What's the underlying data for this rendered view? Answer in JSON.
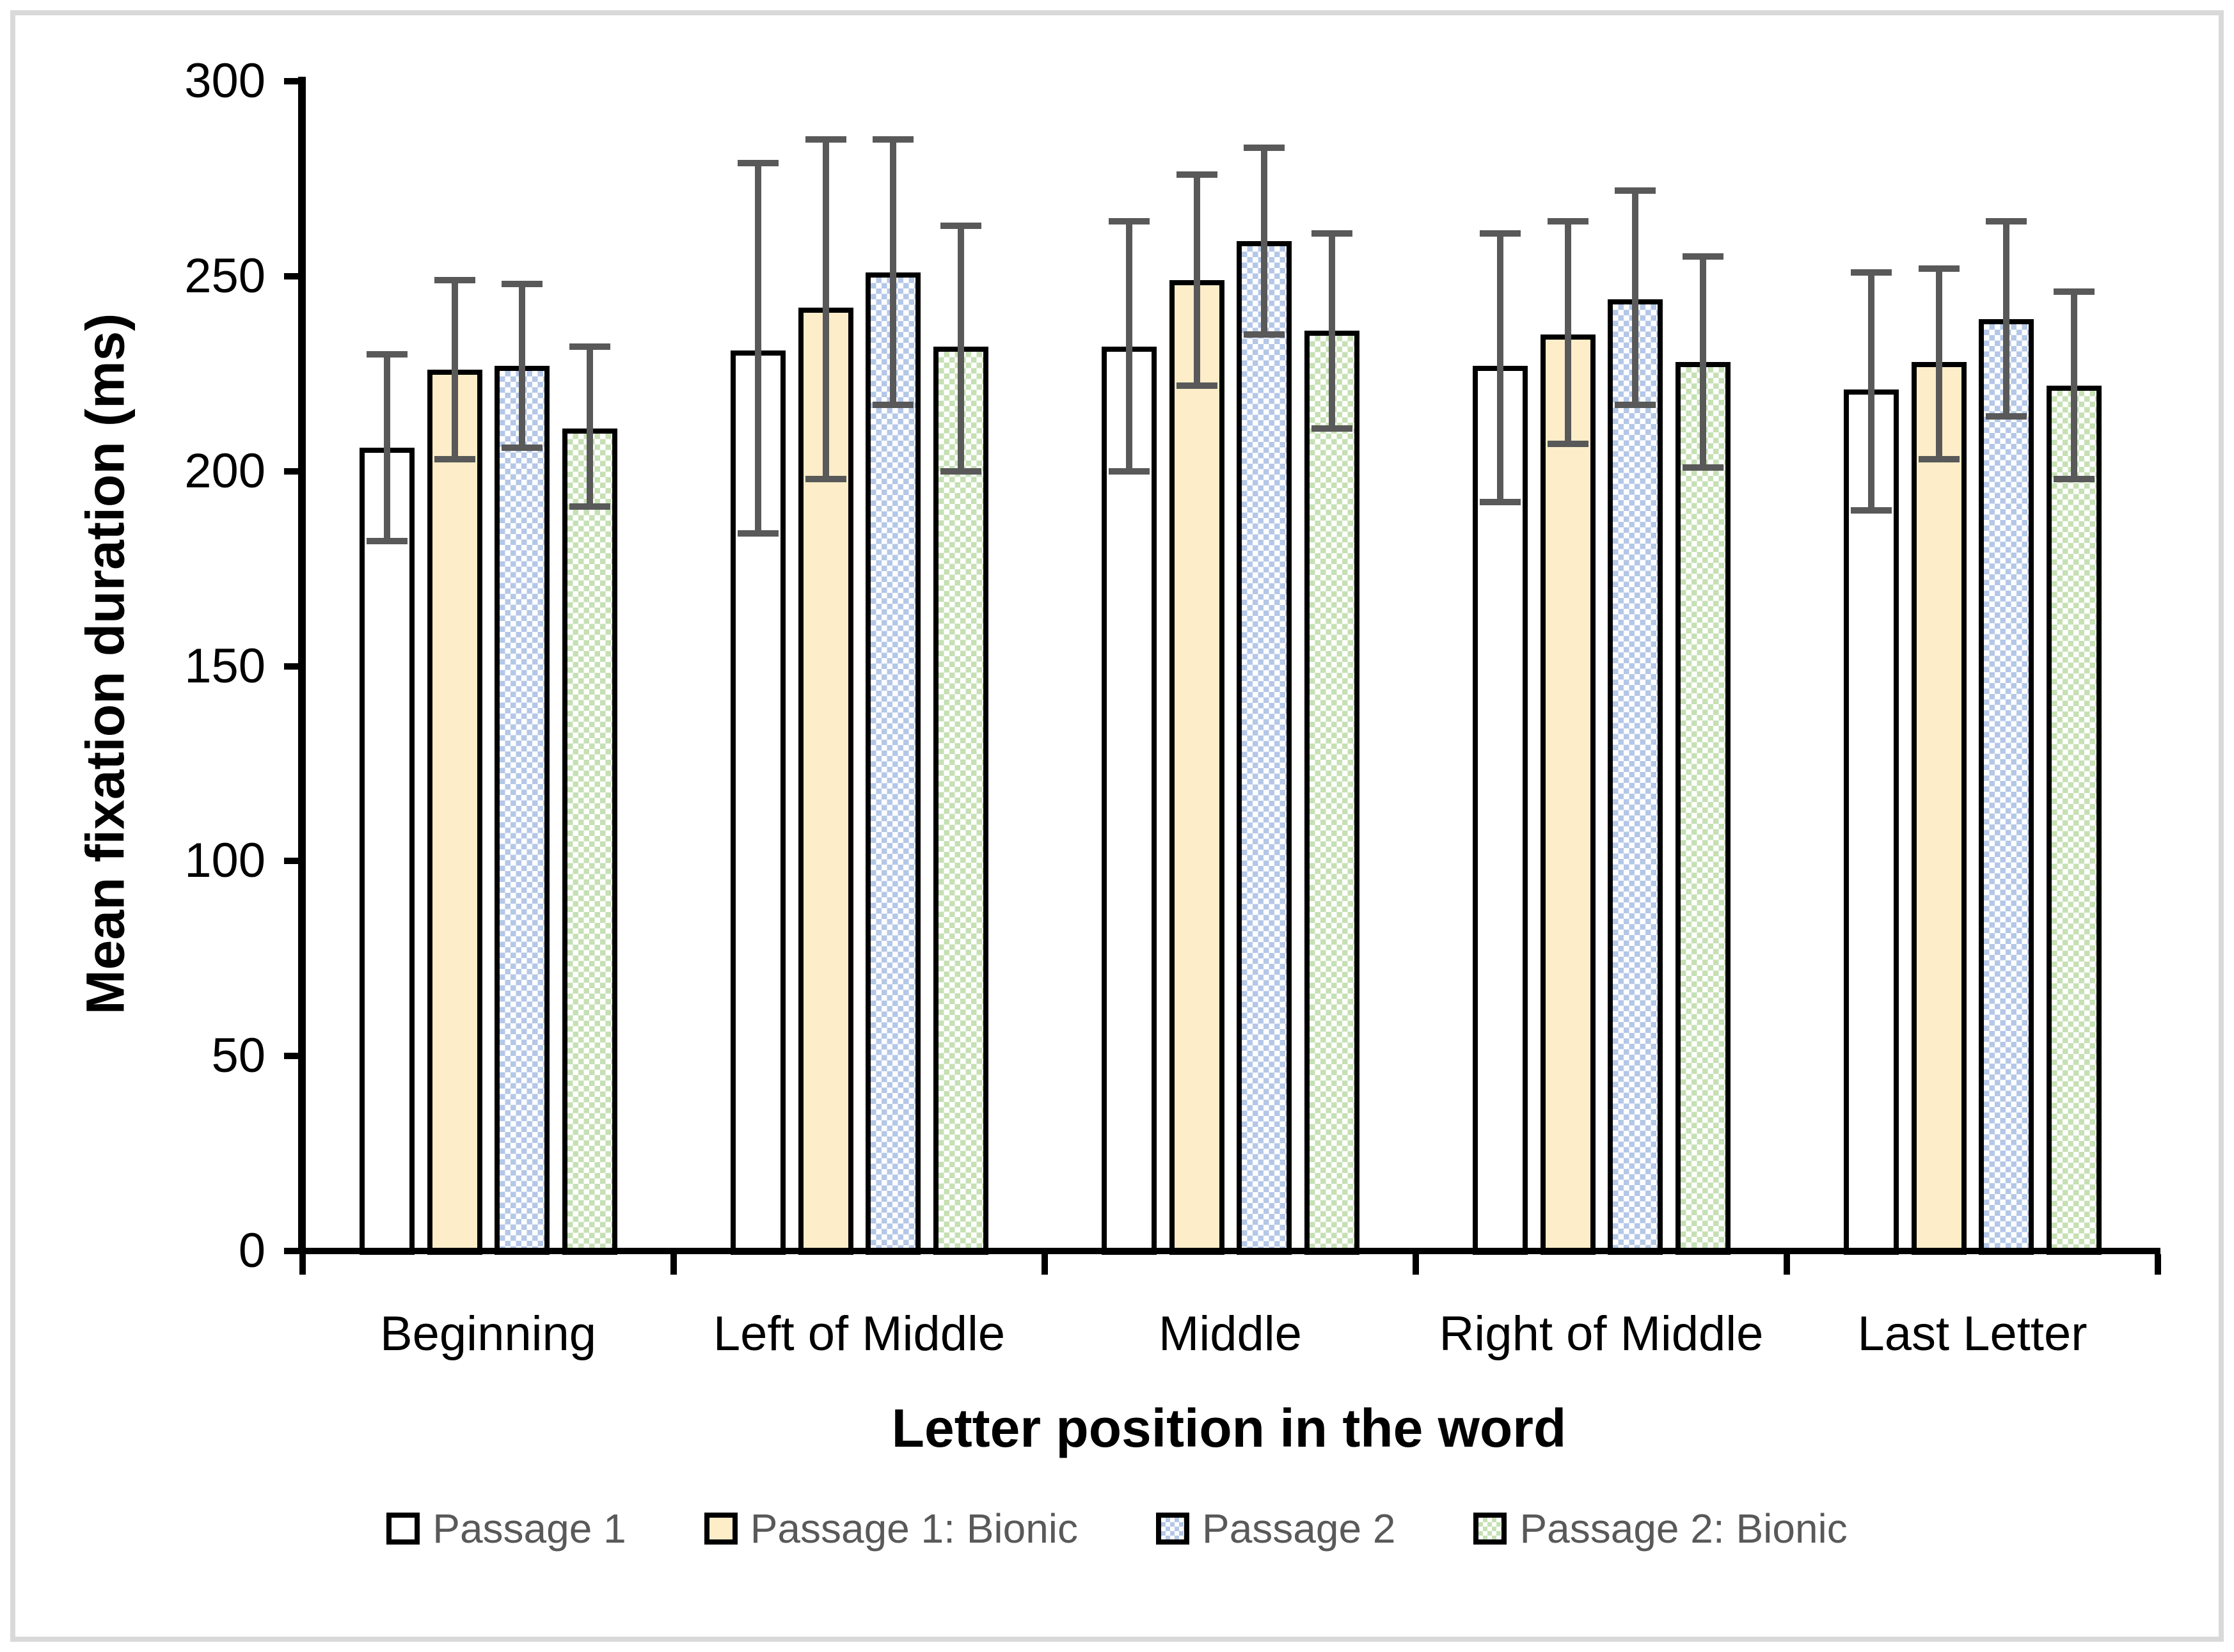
{
  "chart_data": {
    "type": "bar",
    "title": "",
    "xlabel": "Letter position in the word",
    "ylabel": "Mean fixation duration (ms)",
    "ylim": [
      0,
      300
    ],
    "yticks": [
      0,
      50,
      100,
      150,
      200,
      250,
      300
    ],
    "grid": false,
    "legend_position": "bottom",
    "categories": [
      "Beginning",
      "Left of Middle",
      "Middle",
      "Right of Middle",
      "Last Letter"
    ],
    "series": [
      {
        "name": "Passage 1",
        "fill": "#FFFFFF",
        "pattern": "solid",
        "values": [
          206,
          231,
          232,
          227,
          221
        ],
        "err_low": [
          182,
          184,
          200,
          192,
          190
        ],
        "err_high": [
          230,
          279,
          264,
          261,
          251
        ]
      },
      {
        "name": "Passage 1: Bionic",
        "fill": "#FDEDC8",
        "pattern": "solid",
        "values": [
          226,
          242,
          249,
          235,
          228
        ],
        "err_low": [
          203,
          198,
          222,
          207,
          203
        ],
        "err_high": [
          249,
          285,
          276,
          264,
          252
        ]
      },
      {
        "name": "Passage 2",
        "fill": "#B4C7E7",
        "pattern": "checker",
        "values": [
          227,
          251,
          259,
          244,
          239
        ],
        "err_low": [
          206,
          217,
          235,
          217,
          214
        ],
        "err_high": [
          248,
          285,
          283,
          272,
          264
        ]
      },
      {
        "name": "Passage 2: Bionic",
        "fill": "#C6E0B4",
        "pattern": "checker",
        "values": [
          211,
          232,
          236,
          228,
          222
        ],
        "err_low": [
          191,
          200,
          211,
          201,
          198
        ],
        "err_high": [
          232,
          263,
          261,
          255,
          246
        ]
      }
    ],
    "colors": {
      "error_bar": "#595959",
      "axis": "#000000",
      "legend_text": "#595959",
      "figure_border": "#D9D9D9"
    }
  },
  "layout_note": ""
}
